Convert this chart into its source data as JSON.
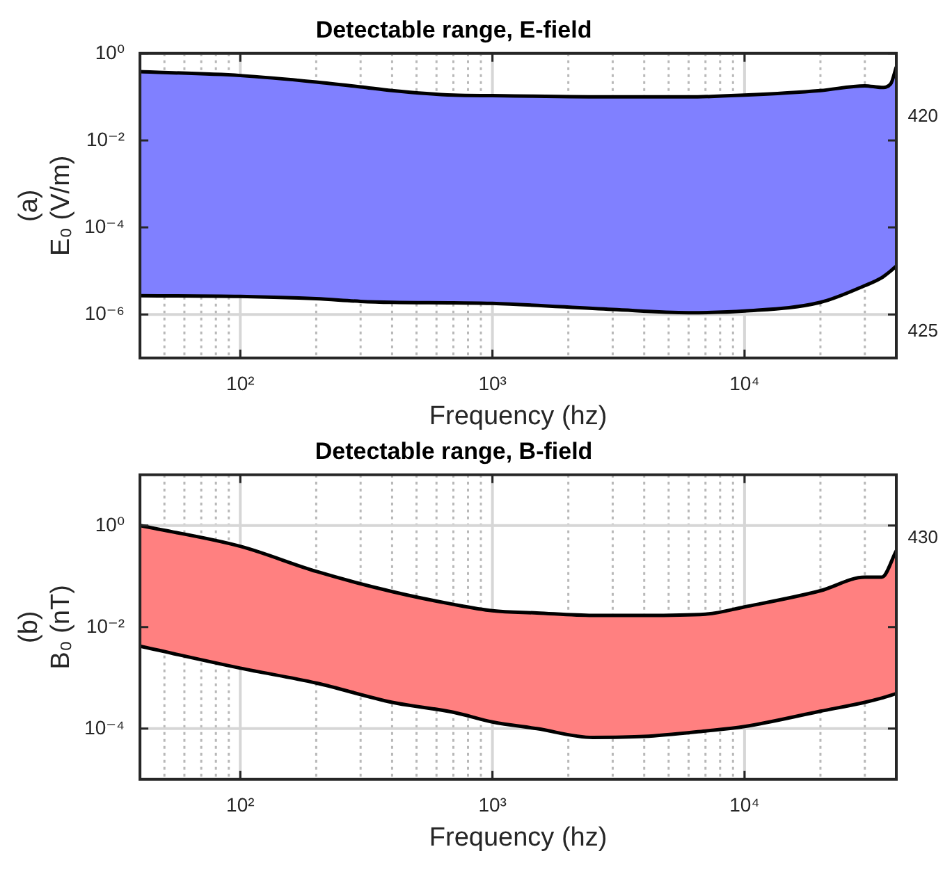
{
  "chart_data": [
    {
      "type": "area",
      "title": "Detectable range, E-field",
      "xlabel": "Frequency (hz)",
      "ylabel": "(a)\nE₀ (V/m)",
      "log": "xy",
      "grid": true,
      "legend": false,
      "x": [
        40,
        100,
        200,
        300,
        400,
        700,
        1000,
        3000,
        6000,
        10000,
        20000,
        30000,
        35000,
        38000,
        40000
      ],
      "series": [
        {
          "type": "line",
          "color": "#000000",
          "values": [
            2.7e-06,
            2.6e-06,
            2.3e-06,
            2e-06,
            1.9e-06,
            1.85e-06,
            1.8e-06,
            1.3e-06,
            1.1e-06,
            1.2e-06,
            1.9e-06,
            4.6e-06,
            7e-06,
            1e-05,
            1.3e-05
          ]
        },
        {
          "type": "area",
          "color": "#8080ff",
          "values": [
            0.38,
            0.31,
            0.22,
            0.17,
            0.14,
            0.11,
            0.107,
            0.1,
            0.1,
            0.11,
            0.14,
            0.18,
            0.165,
            0.2,
            0.49
          ]
        }
      ],
      "xlim": [
        40,
        40000
      ],
      "ylim": [
        1e-07,
        1
      ],
      "xticks": [
        {
          "value": 50,
          "label": null
        },
        {
          "value": 60,
          "label": null
        },
        {
          "value": 70,
          "label": null
        },
        {
          "value": 80,
          "label": null
        },
        {
          "value": 90,
          "label": null
        },
        {
          "value": 100,
          "label": "10²"
        },
        {
          "value": 200,
          "label": null
        },
        {
          "value": 300,
          "label": null
        },
        {
          "value": 400,
          "label": null
        },
        {
          "value": 500,
          "label": null
        },
        {
          "value": 600,
          "label": null
        },
        {
          "value": 700,
          "label": null
        },
        {
          "value": 800,
          "label": null
        },
        {
          "value": 900,
          "label": null
        },
        {
          "value": 1000,
          "label": "10³"
        },
        {
          "value": 2000,
          "label": null
        },
        {
          "value": 3000,
          "label": null
        },
        {
          "value": 4000,
          "label": null
        },
        {
          "value": 5000,
          "label": null
        },
        {
          "value": 6000,
          "label": null
        },
        {
          "value": 7000,
          "label": null
        },
        {
          "value": 8000,
          "label": null
        },
        {
          "value": 9000,
          "label": null
        },
        {
          "value": 10000,
          "label": "10⁴"
        },
        {
          "value": 20000,
          "label": null
        },
        {
          "value": 30000,
          "label": null
        }
      ],
      "yticks": [
        {
          "value": 1e-06,
          "label": "10⁻⁶"
        },
        {
          "value": 0.0001,
          "label": "10⁻⁴"
        },
        {
          "value": 0.01,
          "label": "10⁻²"
        },
        {
          "value": 1,
          "label": "10⁰"
        }
      ],
      "annotations": [
        "420",
        "425"
      ]
    },
    {
      "type": "area",
      "title": "Detectable range, B-field",
      "xlabel": "Frequency (hz)",
      "ylabel": "(b)\nB₀ (nT)",
      "log": "xy",
      "grid": true,
      "legend": false,
      "x": [
        40,
        100,
        200,
        400,
        700,
        1000,
        1500,
        2500,
        4000,
        7000,
        10000,
        20000,
        30000,
        35000,
        40000
      ],
      "series": [
        {
          "type": "line",
          "color": "#000000",
          "values": [
            0.0042,
            0.00155,
            0.00079,
            0.00033,
            0.00021,
            0.000135,
            0.0001,
            6.7e-05,
            7e-05,
            9e-05,
            0.00011,
            0.00022,
            0.00033,
            0.0004,
            0.00049
          ]
        },
        {
          "type": "area",
          "color": "#ff8080",
          "values": [
            1.0,
            0.39,
            0.125,
            0.05,
            0.028,
            0.021,
            0.019,
            0.017,
            0.017,
            0.018,
            0.025,
            0.052,
            0.096,
            0.096,
            0.32
          ]
        }
      ],
      "xlim": [
        40,
        40000
      ],
      "ylim": [
        1e-05,
        10
      ],
      "xticks": [
        {
          "value": 50,
          "label": null
        },
        {
          "value": 60,
          "label": null
        },
        {
          "value": 70,
          "label": null
        },
        {
          "value": 80,
          "label": null
        },
        {
          "value": 90,
          "label": null
        },
        {
          "value": 100,
          "label": "10²"
        },
        {
          "value": 200,
          "label": null
        },
        {
          "value": 300,
          "label": null
        },
        {
          "value": 400,
          "label": null
        },
        {
          "value": 500,
          "label": null
        },
        {
          "value": 600,
          "label": null
        },
        {
          "value": 700,
          "label": null
        },
        {
          "value": 800,
          "label": null
        },
        {
          "value": 900,
          "label": null
        },
        {
          "value": 1000,
          "label": "10³"
        },
        {
          "value": 2000,
          "label": null
        },
        {
          "value": 3000,
          "label": null
        },
        {
          "value": 4000,
          "label": null
        },
        {
          "value": 5000,
          "label": null
        },
        {
          "value": 6000,
          "label": null
        },
        {
          "value": 7000,
          "label": null
        },
        {
          "value": 8000,
          "label": null
        },
        {
          "value": 9000,
          "label": null
        },
        {
          "value": 10000,
          "label": "10⁴"
        },
        {
          "value": 20000,
          "label": null
        },
        {
          "value": 30000,
          "label": null
        }
      ],
      "yticks": [
        {
          "value": 0.0001,
          "label": "10⁻⁴"
        },
        {
          "value": 0.01,
          "label": "10⁻²"
        },
        {
          "value": 1,
          "label": "10⁰"
        }
      ],
      "annotations": [
        "430"
      ]
    }
  ]
}
